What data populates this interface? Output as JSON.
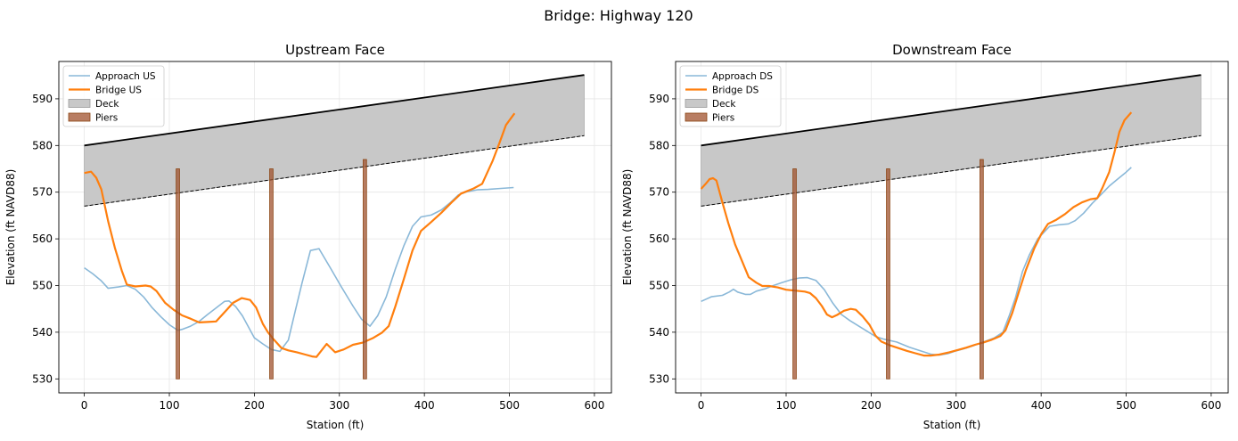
{
  "figure": {
    "title": "Bridge: Highway 120"
  },
  "chart_data": [
    {
      "type": "line",
      "title": "Upstream Face",
      "xlabel": "Station (ft)",
      "ylabel": "Elevation (ft NAVD88)",
      "xlim": [
        -30,
        620
      ],
      "ylim": [
        527,
        598
      ],
      "xticks": [
        0,
        100,
        200,
        300,
        400,
        500,
        600
      ],
      "yticks": [
        530,
        540,
        550,
        560,
        570,
        580,
        590
      ],
      "grid": true,
      "legend_position": "top-left",
      "colors": {
        "approach": "#8ab8d8",
        "bridge": "#ff7f0e",
        "deck_fill": "#c8c8c8",
        "pier": "#a0522d"
      },
      "series": [
        {
          "name": "Approach US",
          "role": "approach",
          "points": [
            [
              0,
              553.8
            ],
            [
              10,
              552.5
            ],
            [
              20,
              551
            ],
            [
              28,
              549.4
            ],
            [
              40,
              549.7
            ],
            [
              50,
              550
            ],
            [
              60,
              549.2
            ],
            [
              70,
              547.5
            ],
            [
              80,
              545.2
            ],
            [
              90,
              543.3
            ],
            [
              100,
              541.6
            ],
            [
              110,
              540.4
            ],
            [
              115,
              540.6
            ],
            [
              125,
              541.3
            ],
            [
              135,
              542.3
            ],
            [
              145,
              543.8
            ],
            [
              155,
              545.2
            ],
            [
              165,
              546.6
            ],
            [
              170,
              546.7
            ],
            [
              178,
              545.5
            ],
            [
              186,
              543.5
            ],
            [
              200,
              538.8
            ],
            [
              210,
              537.5
            ],
            [
              220,
              536.3
            ],
            [
              230,
              535.9
            ],
            [
              240,
              538.3
            ],
            [
              248,
              544.5
            ],
            [
              256,
              550.5
            ],
            [
              266,
              557.5
            ],
            [
              276,
              557.9
            ],
            [
              290,
              553.6
            ],
            [
              302,
              549.8
            ],
            [
              316,
              545.6
            ],
            [
              326,
              542.8
            ],
            [
              336,
              541.3
            ],
            [
              345,
              543.5
            ],
            [
              355,
              547.5
            ],
            [
              366,
              553.6
            ],
            [
              376,
              558.6
            ],
            [
              386,
              562.7
            ],
            [
              396,
              564.7
            ],
            [
              408,
              565.1
            ],
            [
              420,
              566.2
            ],
            [
              430,
              567.7
            ],
            [
              440,
              569.4
            ],
            [
              450,
              570.1
            ],
            [
              462,
              570.5
            ],
            [
              475,
              570.6
            ],
            [
              490,
              570.8
            ],
            [
              505,
              571
            ]
          ]
        },
        {
          "name": "Bridge US",
          "role": "bridge",
          "points": [
            [
              0,
              574.1
            ],
            [
              8,
              574.4
            ],
            [
              14,
              573.1
            ],
            [
              20,
              570.6
            ],
            [
              28,
              563.8
            ],
            [
              36,
              558
            ],
            [
              44,
              553.2
            ],
            [
              50,
              550.2
            ],
            [
              60,
              549.8
            ],
            [
              72,
              550
            ],
            [
              78,
              549.8
            ],
            [
              85,
              548.8
            ],
            [
              95,
              546.3
            ],
            [
              105,
              544.8
            ],
            [
              115,
              543.6
            ],
            [
              125,
              542.9
            ],
            [
              135,
              542.1
            ],
            [
              145,
              542.2
            ],
            [
              155,
              542.3
            ],
            [
              165,
              544.3
            ],
            [
              175,
              546.3
            ],
            [
              185,
              547.3
            ],
            [
              195,
              546.9
            ],
            [
              202,
              545.3
            ],
            [
              210,
              541.8
            ],
            [
              216,
              540
            ],
            [
              222,
              538.6
            ],
            [
              232,
              536.6
            ],
            [
              240,
              536.1
            ],
            [
              250,
              535.7
            ],
            [
              260,
              535.2
            ],
            [
              268,
              534.8
            ],
            [
              273,
              534.7
            ],
            [
              285,
              537.5
            ],
            [
              295,
              535.7
            ],
            [
              305,
              536.3
            ],
            [
              316,
              537.3
            ],
            [
              328,
              537.8
            ],
            [
              340,
              538.8
            ],
            [
              350,
              539.9
            ],
            [
              358,
              541.3
            ],
            [
              366,
              545.6
            ],
            [
              376,
              551.5
            ],
            [
              386,
              557.5
            ],
            [
              396,
              561.7
            ],
            [
              408,
              563.6
            ],
            [
              420,
              565.6
            ],
            [
              432,
              567.8
            ],
            [
              443,
              569.7
            ],
            [
              458,
              570.8
            ],
            [
              468,
              571.8
            ],
            [
              472,
              573.4
            ],
            [
              480,
              576.6
            ],
            [
              488,
              580.4
            ],
            [
              496,
              584.4
            ],
            [
              506,
              586.9
            ]
          ]
        }
      ],
      "deck": {
        "name": "Deck",
        "x": [
          0,
          588
        ],
        "top": [
          580,
          595.1
        ],
        "bottom": [
          567,
          582.1
        ]
      },
      "piers": {
        "name": "Piers",
        "stations": [
          110,
          220,
          330
        ],
        "width_ft": 4,
        "base": 530,
        "tops": [
          575,
          575,
          577
        ]
      }
    },
    {
      "type": "line",
      "title": "Downstream Face",
      "xlabel": "Station (ft)",
      "ylabel": "Elevation (ft NAVD88)",
      "xlim": [
        -30,
        620
      ],
      "ylim": [
        527,
        598
      ],
      "xticks": [
        0,
        100,
        200,
        300,
        400,
        500,
        600
      ],
      "yticks": [
        530,
        540,
        550,
        560,
        570,
        580,
        590
      ],
      "grid": true,
      "legend_position": "top-left",
      "colors": {
        "approach": "#8ab8d8",
        "bridge": "#ff7f0e",
        "deck_fill": "#c8c8c8",
        "pier": "#a0522d"
      },
      "series": [
        {
          "name": "Approach DS",
          "role": "approach",
          "points": [
            [
              0,
              546.6
            ],
            [
              12,
              547.6
            ],
            [
              25,
              547.9
            ],
            [
              33,
              548.6
            ],
            [
              38,
              549.2
            ],
            [
              43,
              548.6
            ],
            [
              52,
              548.1
            ],
            [
              58,
              548.1
            ],
            [
              65,
              548.8
            ],
            [
              75,
              549.3
            ],
            [
              85,
              550
            ],
            [
              95,
              550.6
            ],
            [
              105,
              551.2
            ],
            [
              115,
              551.6
            ],
            [
              125,
              551.7
            ],
            [
              135,
              551.1
            ],
            [
              145,
              549.1
            ],
            [
              155,
              546.2
            ],
            [
              165,
              543.8
            ],
            [
              175,
              542.5
            ],
            [
              190,
              540.8
            ],
            [
              205,
              539.1
            ],
            [
              215,
              538.5
            ],
            [
              230,
              537.9
            ],
            [
              245,
              536.8
            ],
            [
              260,
              535.9
            ],
            [
              270,
              535.3
            ],
            [
              280,
              535.1
            ],
            [
              290,
              535.4
            ],
            [
              300,
              536
            ],
            [
              310,
              536.5
            ],
            [
              320,
              537.1
            ],
            [
              332,
              537.9
            ],
            [
              345,
              538.8
            ],
            [
              355,
              540
            ],
            [
              362,
              543.3
            ],
            [
              370,
              547.5
            ],
            [
              378,
              553
            ],
            [
              386,
              556.5
            ],
            [
              396,
              560
            ],
            [
              410,
              562.7
            ],
            [
              420,
              563
            ],
            [
              432,
              563.2
            ],
            [
              440,
              563.9
            ],
            [
              450,
              565.5
            ],
            [
              460,
              567.6
            ],
            [
              470,
              569.4
            ],
            [
              480,
              571.3
            ],
            [
              490,
              572.8
            ],
            [
              500,
              574.3
            ],
            [
              506,
              575.3
            ]
          ]
        },
        {
          "name": "Bridge DS",
          "role": "bridge",
          "points": [
            [
              0,
              570.7
            ],
            [
              5,
              571.7
            ],
            [
              10,
              572.8
            ],
            [
              14,
              573
            ],
            [
              18,
              572.5
            ],
            [
              25,
              567.8
            ],
            [
              32,
              563.4
            ],
            [
              40,
              558.8
            ],
            [
              48,
              555.3
            ],
            [
              56,
              551.8
            ],
            [
              65,
              550.6
            ],
            [
              72,
              549.9
            ],
            [
              80,
              549.9
            ],
            [
              90,
              549.6
            ],
            [
              100,
              549.1
            ],
            [
              112,
              548.9
            ],
            [
              122,
              548.7
            ],
            [
              128,
              548.4
            ],
            [
              135,
              547.3
            ],
            [
              142,
              545.6
            ],
            [
              148,
              543.8
            ],
            [
              154,
              543.2
            ],
            [
              160,
              543.7
            ],
            [
              168,
              544.6
            ],
            [
              176,
              545
            ],
            [
              182,
              544.8
            ],
            [
              190,
              543.4
            ],
            [
              198,
              541.6
            ],
            [
              205,
              539.3
            ],
            [
              212,
              538
            ],
            [
              222,
              537.2
            ],
            [
              232,
              536.6
            ],
            [
              242,
              536
            ],
            [
              252,
              535.5
            ],
            [
              262,
              535
            ],
            [
              270,
              535
            ],
            [
              280,
              535.2
            ],
            [
              292,
              535.7
            ],
            [
              302,
              536.2
            ],
            [
              312,
              536.7
            ],
            [
              322,
              537.3
            ],
            [
              332,
              537.8
            ],
            [
              342,
              538.4
            ],
            [
              352,
              539.2
            ],
            [
              358,
              540.4
            ],
            [
              366,
              544.1
            ],
            [
              374,
              548.8
            ],
            [
              382,
              553.3
            ],
            [
              392,
              558
            ],
            [
              400,
              561
            ],
            [
              408,
              563.2
            ],
            [
              418,
              564.1
            ],
            [
              428,
              565.3
            ],
            [
              438,
              566.8
            ],
            [
              448,
              567.8
            ],
            [
              458,
              568.5
            ],
            [
              466,
              568.7
            ],
            [
              472,
              570.9
            ],
            [
              480,
              574.3
            ],
            [
              486,
              578.4
            ],
            [
              492,
              582.9
            ],
            [
              498,
              585.4
            ],
            [
              506,
              587.1
            ]
          ]
        }
      ],
      "deck": {
        "name": "Deck",
        "x": [
          0,
          588
        ],
        "top": [
          580,
          595.1
        ],
        "bottom": [
          567,
          582.1
        ]
      },
      "piers": {
        "name": "Piers",
        "stations": [
          110,
          220,
          330
        ],
        "width_ft": 4,
        "base": 530,
        "tops": [
          575,
          575,
          577
        ]
      }
    }
  ]
}
